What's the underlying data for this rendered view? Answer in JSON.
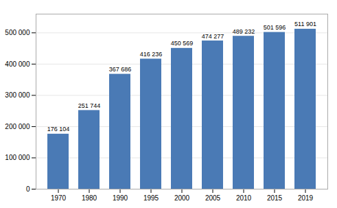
{
  "chart_data": {
    "type": "bar",
    "categories": [
      "1970",
      "1980",
      "1990",
      "1995",
      "2000",
      "2005",
      "2010",
      "2015",
      "2019"
    ],
    "values": [
      176104,
      251744,
      367686,
      416236,
      450569,
      474277,
      489232,
      501596,
      511901
    ],
    "value_labels": [
      "176 104",
      "251 744",
      "367 686",
      "416 236",
      "450 569",
      "474 277",
      "489 232",
      "501 596",
      "511 901"
    ],
    "data_labels": true,
    "color": "#4a7ab5",
    "ylim": [
      0,
      560000
    ],
    "yticks": [
      0,
      {
        "value": 100000,
        "label": "100 000"
      },
      {
        "value": 200000,
        "label": "200 000"
      },
      {
        "value": 300000,
        "label": "300 000"
      },
      {
        "value": 400000,
        "label": "400 000"
      },
      {
        "value": 500000,
        "label": "500 000"
      }
    ],
    "grid": true
  }
}
